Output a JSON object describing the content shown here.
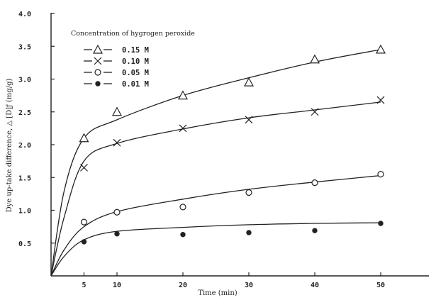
{
  "chart_data": {
    "type": "scatter",
    "xlabel": "Time (min)",
    "ylabel": "Dye up-take difference, △ [D]ƒ  (mg/g)",
    "xlim": [
      0,
      57
    ],
    "ylim": [
      0,
      4.0
    ],
    "x_ticks": [
      5,
      10,
      20,
      30,
      40,
      50
    ],
    "x_tick_labels": [
      "5",
      "10",
      "20",
      "30",
      "40",
      "50"
    ],
    "y_ticks": [
      0.5,
      1.0,
      1.5,
      2.0,
      2.5,
      3.0,
      3.5,
      4.0
    ],
    "y_tick_labels": [
      "0.5",
      "1.0",
      "1.5",
      "2.0",
      "2.5",
      "3.0",
      "3.5",
      "4.0"
    ],
    "legend_title": "Concentration of hygrogen peroxide",
    "legend_position": "top-left",
    "grid": false,
    "series": [
      {
        "name": "0.15 M",
        "marker": "triangle",
        "x": [
          5,
          10,
          20,
          30,
          40,
          50
        ],
        "y": [
          2.1,
          2.5,
          2.75,
          2.95,
          3.3,
          3.45
        ],
        "fit": [
          [
            0,
            0
          ],
          [
            2,
            1.3
          ],
          [
            5,
            2.1
          ],
          [
            10,
            2.38
          ],
          [
            20,
            2.75
          ],
          [
            30,
            3.02
          ],
          [
            40,
            3.26
          ],
          [
            50,
            3.45
          ]
        ]
      },
      {
        "name": "0.10 M",
        "marker": "x",
        "x": [
          5,
          10,
          20,
          30,
          40,
          50
        ],
        "y": [
          1.65,
          2.03,
          2.25,
          2.38,
          2.5,
          2.68
        ],
        "fit": [
          [
            0,
            0
          ],
          [
            2,
            0.9
          ],
          [
            5,
            1.75
          ],
          [
            10,
            2.02
          ],
          [
            20,
            2.24
          ],
          [
            30,
            2.41
          ],
          [
            40,
            2.53
          ],
          [
            50,
            2.65
          ]
        ]
      },
      {
        "name": "0.05 M",
        "marker": "circle-open",
        "x": [
          5,
          10,
          20,
          30,
          40,
          50
        ],
        "y": [
          0.82,
          0.97,
          1.05,
          1.27,
          1.42,
          1.55
        ],
        "fit": [
          [
            0,
            0
          ],
          [
            2,
            0.4
          ],
          [
            5,
            0.75
          ],
          [
            10,
            0.98
          ],
          [
            20,
            1.17
          ],
          [
            30,
            1.32
          ],
          [
            40,
            1.43
          ],
          [
            50,
            1.53
          ]
        ]
      },
      {
        "name": "0.01 M",
        "marker": "circle-filled",
        "x": [
          5,
          10,
          20,
          30,
          40,
          50
        ],
        "y": [
          0.52,
          0.64,
          0.63,
          0.66,
          0.69,
          0.8
        ],
        "fit": [
          [
            0,
            0
          ],
          [
            2,
            0.3
          ],
          [
            5,
            0.55
          ],
          [
            10,
            0.68
          ],
          [
            20,
            0.74
          ],
          [
            30,
            0.78
          ],
          [
            40,
            0.8
          ],
          [
            50,
            0.81
          ]
        ]
      }
    ]
  }
}
